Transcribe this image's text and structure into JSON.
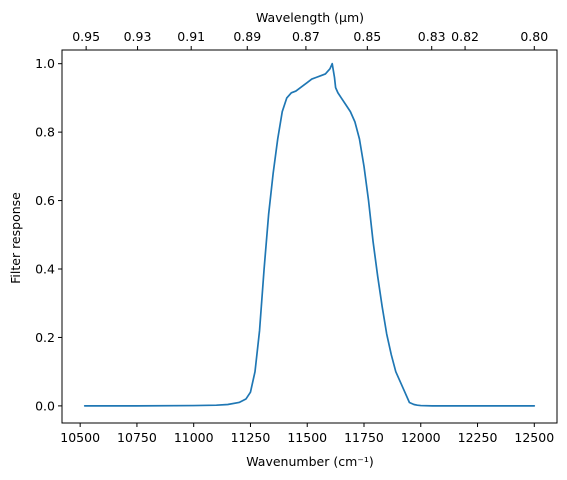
{
  "chart_data": {
    "type": "line",
    "title": "",
    "xlabel": "Wavenumber (cm⁻¹)",
    "ylabel": "Filter response",
    "top_xlabel": "Wavelength (μm)",
    "xlim": [
      10420,
      12600
    ],
    "ylim": [
      -0.05,
      1.04
    ],
    "x_ticks": [
      10500,
      10750,
      11000,
      11250,
      11500,
      11750,
      12000,
      12250,
      12500
    ],
    "x_tick_labels": [
      "10500",
      "10750",
      "11000",
      "11250",
      "11500",
      "11750",
      "12000",
      "12250",
      "12500"
    ],
    "y_ticks": [
      0.0,
      0.2,
      0.4,
      0.6,
      0.8,
      1.0
    ],
    "y_tick_labels": [
      "0.0",
      "0.2",
      "0.4",
      "0.6",
      "0.8",
      "1.0"
    ],
    "top_ticks": [
      0.95,
      0.93,
      0.91,
      0.89,
      0.87,
      0.85,
      0.83,
      0.82,
      0.8
    ],
    "top_tick_labels": [
      "0.95",
      "0.93",
      "0.91",
      "0.89",
      "0.87",
      "0.85",
      "0.83",
      "0.82",
      "0.80"
    ],
    "grid": false,
    "legend": false,
    "series": [
      {
        "color": "#1f77b4",
        "x": [
          10520,
          10750,
          11000,
          11100,
          11150,
          11200,
          11230,
          11250,
          11270,
          11290,
          11310,
          11330,
          11350,
          11370,
          11390,
          11410,
          11430,
          11450,
          11480,
          11500,
          11520,
          11540,
          11560,
          11580,
          11600,
          11610,
          11620,
          11625,
          11635,
          11650,
          11670,
          11690,
          11710,
          11730,
          11750,
          11770,
          11790,
          11810,
          11830,
          11850,
          11870,
          11890,
          11910,
          11930,
          11950,
          11970,
          11985,
          12000,
          12050,
          12100,
          12250,
          12500
        ],
        "y": [
          0.0,
          0.0,
          0.001,
          0.002,
          0.004,
          0.01,
          0.02,
          0.04,
          0.1,
          0.22,
          0.4,
          0.56,
          0.68,
          0.78,
          0.86,
          0.9,
          0.915,
          0.92,
          0.935,
          0.945,
          0.955,
          0.96,
          0.965,
          0.97,
          0.985,
          1.0,
          0.96,
          0.93,
          0.915,
          0.9,
          0.88,
          0.86,
          0.83,
          0.78,
          0.7,
          0.6,
          0.48,
          0.38,
          0.29,
          0.21,
          0.15,
          0.1,
          0.07,
          0.04,
          0.01,
          0.004,
          0.002,
          0.001,
          0.0,
          0.0,
          0.0,
          0.0
        ]
      }
    ]
  }
}
